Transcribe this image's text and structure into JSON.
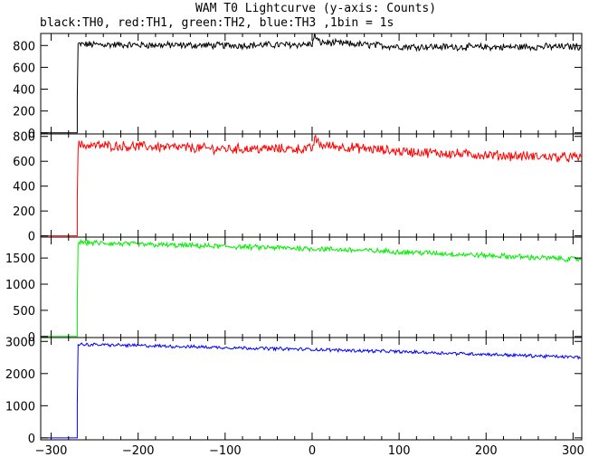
{
  "header": {
    "title": "WAM T0 Lightcurve (y-axis: Counts)",
    "subtitle": "black:TH0, red:TH1, green:TH2, blue:TH3 ,1bin = 1s"
  },
  "chart_data": {
    "type": "line",
    "title": "WAM T0 Lightcurve (y-axis: Counts)",
    "subtitle": "black:TH0, red:TH1, green:TH2, blue:TH3 ,1bin = 1s",
    "xlabel": "",
    "ylabel": "",
    "xlim": [
      -312,
      310
    ],
    "x_ticks": [
      -300,
      -200,
      -100,
      0,
      100,
      200,
      300
    ],
    "grid": false,
    "legend": "none",
    "panels": [
      {
        "name": "TH0",
        "color": "#000000",
        "ylim": [
          -10,
          910
        ],
        "y_ticks": [
          0,
          200,
          400,
          600,
          800
        ],
        "baseline": 0,
        "rise_x": -270,
        "rise_mid": 320,
        "points": [
          [
            -270,
            810
          ],
          [
            -200,
            805
          ],
          [
            -100,
            800
          ],
          [
            0,
            810
          ],
          [
            3,
            890
          ],
          [
            8,
            830
          ],
          [
            100,
            790
          ],
          [
            200,
            785
          ],
          [
            300,
            790
          ]
        ],
        "noise": 28
      },
      {
        "name": "TH1",
        "color": "#ff0000",
        "ylim": [
          -10,
          820
        ],
        "y_ticks": [
          0,
          200,
          400,
          600,
          800
        ],
        "baseline": 0,
        "rise_x": -270,
        "rise_mid": 300,
        "points": [
          [
            -270,
            730
          ],
          [
            -200,
            720
          ],
          [
            -100,
            700
          ],
          [
            0,
            700
          ],
          [
            3,
            780
          ],
          [
            10,
            730
          ],
          [
            100,
            680
          ],
          [
            200,
            650
          ],
          [
            300,
            630
          ]
        ],
        "noise": 35
      },
      {
        "name": "TH2",
        "color": "#00ee00",
        "ylim": [
          -20,
          1900
        ],
        "y_ticks": [
          0,
          500,
          1000,
          1500
        ],
        "baseline": 0,
        "rise_x": -270,
        "rise_mid": 650,
        "points": [
          [
            -270,
            1800
          ],
          [
            -200,
            1760
          ],
          [
            -100,
            1720
          ],
          [
            0,
            1680
          ],
          [
            100,
            1620
          ],
          [
            200,
            1550
          ],
          [
            300,
            1480
          ]
        ],
        "noise": 45
      },
      {
        "name": "TH3",
        "color": "#0000ff",
        "ylim": [
          -60,
          3120
        ],
        "y_ticks": [
          0,
          1000,
          2000,
          3000
        ],
        "baseline": 0,
        "rise_x": -270,
        "rise_mid": 1050,
        "points": [
          [
            -270,
            2910
          ],
          [
            -200,
            2870
          ],
          [
            -100,
            2810
          ],
          [
            0,
            2750
          ],
          [
            100,
            2680
          ],
          [
            200,
            2600
          ],
          [
            300,
            2510
          ]
        ],
        "noise": 45
      }
    ]
  }
}
